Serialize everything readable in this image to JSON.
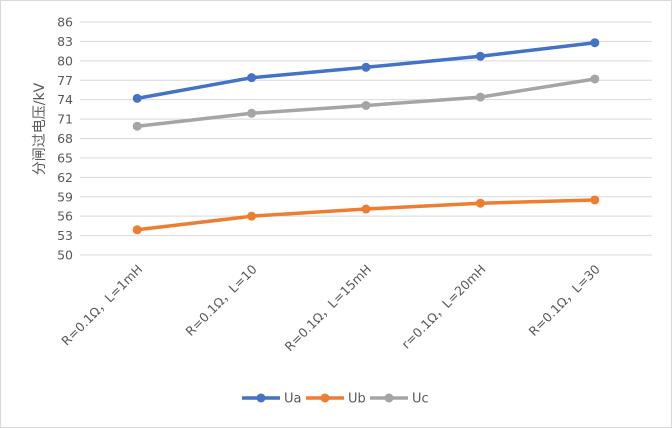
{
  "chart_data": {
    "type": "line",
    "title": "",
    "xlabel": "",
    "ylabel": "分闸过电压/kV",
    "categories": [
      "R=0.1Ω，L=1mH",
      "R=0.1Ω，L=10",
      "R=0.1Ω，L=15mH",
      "r=0.1Ω，L=20mH",
      "R=0.1Ω，L=30"
    ],
    "yticks": [
      50,
      53,
      56,
      59,
      62,
      65,
      68,
      71,
      74,
      77,
      80,
      83,
      86
    ],
    "ylim": [
      50,
      86
    ],
    "grid": true,
    "legend_position": "bottom",
    "series": [
      {
        "name": "Ua",
        "color": "#4472c4",
        "values": [
          74.2,
          77.4,
          79.0,
          80.7,
          82.8
        ]
      },
      {
        "name": "Ub",
        "color": "#ed7d31",
        "values": [
          53.9,
          56.0,
          57.1,
          58.0,
          58.5
        ]
      },
      {
        "name": "Uc",
        "color": "#a5a5a5",
        "values": [
          69.9,
          71.9,
          73.1,
          74.4,
          77.2
        ]
      }
    ]
  }
}
